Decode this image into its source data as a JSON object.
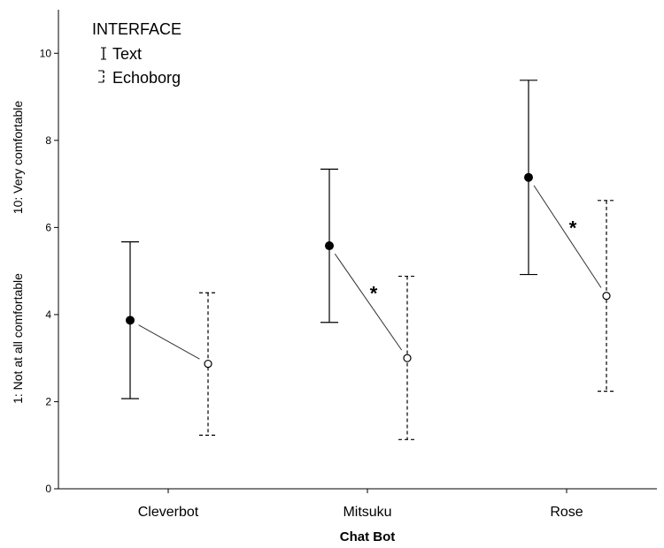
{
  "chart_data": {
    "type": "error-bar",
    "categories": [
      "Cleverbot",
      "Mitsuku",
      "Rose"
    ],
    "xlabel": "Chat Bot",
    "ylabel_lines": [
      "1: Not at all comfortable",
      "10: Very comfortable"
    ],
    "ylim": [
      0,
      11
    ],
    "yticks": [
      0,
      2,
      4,
      6,
      8,
      10
    ],
    "legend": {
      "title": "INTERFACE",
      "position": "top-left"
    },
    "series": [
      {
        "name": "Text",
        "marker": "filled-circle",
        "line": "solid",
        "values": [
          3.87,
          5.58,
          7.15
        ],
        "ci_low": [
          2.07,
          3.82,
          4.92
        ],
        "ci_high": [
          5.67,
          7.34,
          9.38
        ]
      },
      {
        "name": "Echoborg",
        "marker": "open-circle",
        "line": "dashed",
        "values": [
          2.87,
          3.0,
          4.43
        ],
        "ci_low": [
          1.23,
          1.13,
          2.24
        ],
        "ci_high": [
          4.5,
          4.88,
          6.62
        ]
      }
    ],
    "annotations": [
      {
        "category": "Mitsuku",
        "text": "*"
      },
      {
        "category": "Rose",
        "text": "*"
      }
    ],
    "grid": false
  }
}
